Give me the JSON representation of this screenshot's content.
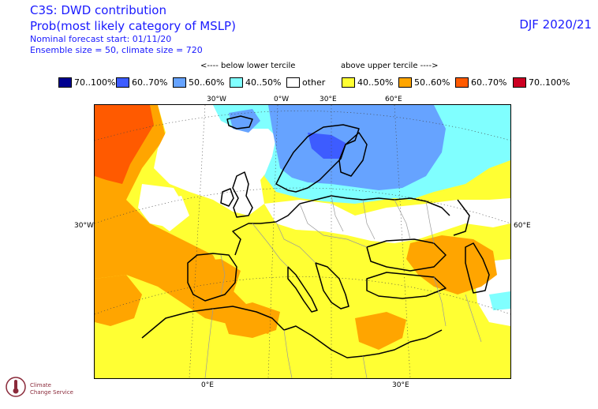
{
  "header": {
    "title": "C3S: DWD contribution",
    "subtitle": "Prob(most likely category of MSLP)",
    "forecast_start": "Nominal forecast start: 01/11/20",
    "ensemble": "Ensemble size = 50, climate size = 720",
    "season": "DJF 2020/21"
  },
  "legend": {
    "below_label": "<---- below lower tercile",
    "above_label": "above upper tercile ---->",
    "items": [
      {
        "label": "70..100%",
        "color": "#00008f"
      },
      {
        "label": "60..70%",
        "color": "#3d5cff"
      },
      {
        "label": "50..60%",
        "color": "#66a3ff"
      },
      {
        "label": "40..50%",
        "color": "#80ffff"
      },
      {
        "label": "other",
        "color": "#ffffff"
      },
      {
        "label": "40..50%",
        "color": "#ffff33"
      },
      {
        "label": "50..60%",
        "color": "#ffa500"
      },
      {
        "label": "60..70%",
        "color": "#ff5a00"
      },
      {
        "label": "70..100%",
        "color": "#cc0022"
      }
    ]
  },
  "map": {
    "labels_top": [
      "30°W",
      "0°W",
      "30°E",
      "60°E"
    ],
    "labels_bottom": [
      "0°E",
      "30°E"
    ],
    "label_left": "30°W",
    "label_right": "60°E"
  },
  "logo": {
    "line1": "Climate",
    "line2": "Change Service"
  }
}
